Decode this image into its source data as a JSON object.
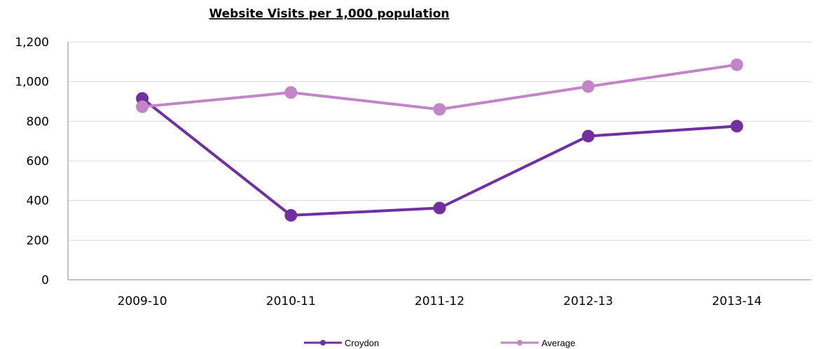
{
  "chart_data": {
    "type": "line",
    "title": "Website Visits per 1,000 population",
    "categories": [
      "2009-10",
      "2010-11",
      "2011-12",
      "2012-13",
      "2013-14"
    ],
    "ylim": [
      0,
      1200
    ],
    "yticks": [
      0,
      200,
      400,
      600,
      800,
      1000,
      1200
    ],
    "ytick_labels": [
      "0",
      "200",
      "400",
      "600",
      "800",
      "1,000",
      "1,200"
    ],
    "grid": true,
    "legend_position": "bottom",
    "series": [
      {
        "name": "Croydon",
        "color": "#7030a0",
        "values": [
          915,
          325,
          362,
          725,
          775
        ]
      },
      {
        "name": "Average",
        "color": "#c286c8",
        "values": [
          873,
          945,
          860,
          975,
          1085
        ]
      }
    ]
  }
}
